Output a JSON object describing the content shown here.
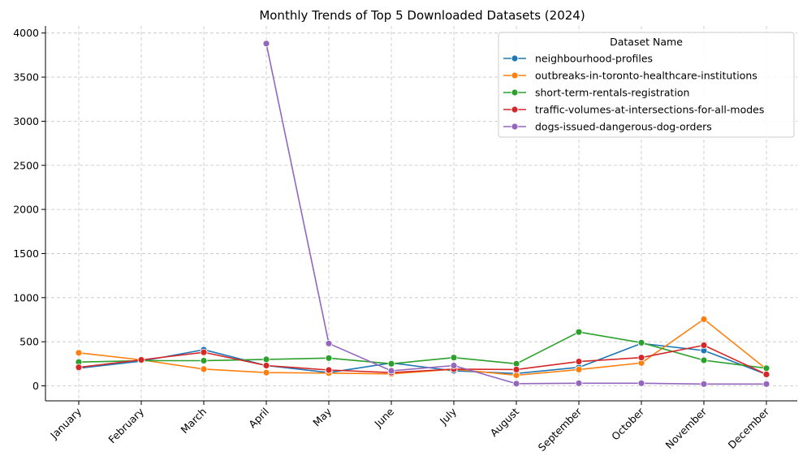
{
  "chart_data": {
    "type": "line",
    "title": "Monthly Trends of Top 5 Downloaded Datasets (2024)",
    "xlabel": "",
    "ylabel": "",
    "categories": [
      "January",
      "February",
      "March",
      "April",
      "May",
      "June",
      "July",
      "August",
      "September",
      "October",
      "November",
      "December"
    ],
    "ylim": [
      -170,
      4080
    ],
    "yticks": [
      0,
      500,
      1000,
      1500,
      2000,
      2500,
      3000,
      3500,
      4000
    ],
    "grid": true,
    "legend": {
      "title": "Dataset Name",
      "placement": "top-right"
    },
    "series": [
      {
        "name": "neighbourhood-profiles",
        "color": "#1f77b4",
        "values": [
          200,
          280,
          410,
          230,
          150,
          260,
          170,
          140,
          210,
          480,
          400,
          130
        ]
      },
      {
        "name": "outbreaks-in-toronto-healthcare-institutions",
        "color": "#ff7f0e",
        "values": [
          375,
          295,
          190,
          150,
          145,
          135,
          190,
          120,
          185,
          260,
          755,
          190
        ]
      },
      {
        "name": "short-term-rentals-registration",
        "color": "#2ca02c",
        "values": [
          270,
          285,
          285,
          300,
          315,
          250,
          320,
          250,
          610,
          490,
          290,
          200
        ]
      },
      {
        "name": "traffic-volumes-at-intersections-for-all-modes",
        "color": "#d62728",
        "values": [
          210,
          295,
          380,
          230,
          180,
          150,
          190,
          185,
          275,
          320,
          460,
          130
        ]
      },
      {
        "name": "dogs-issued-dangerous-dog-orders",
        "color": "#9467bd",
        "values": [
          null,
          null,
          null,
          3880,
          480,
          170,
          230,
          25,
          30,
          30,
          20,
          20
        ]
      }
    ]
  }
}
